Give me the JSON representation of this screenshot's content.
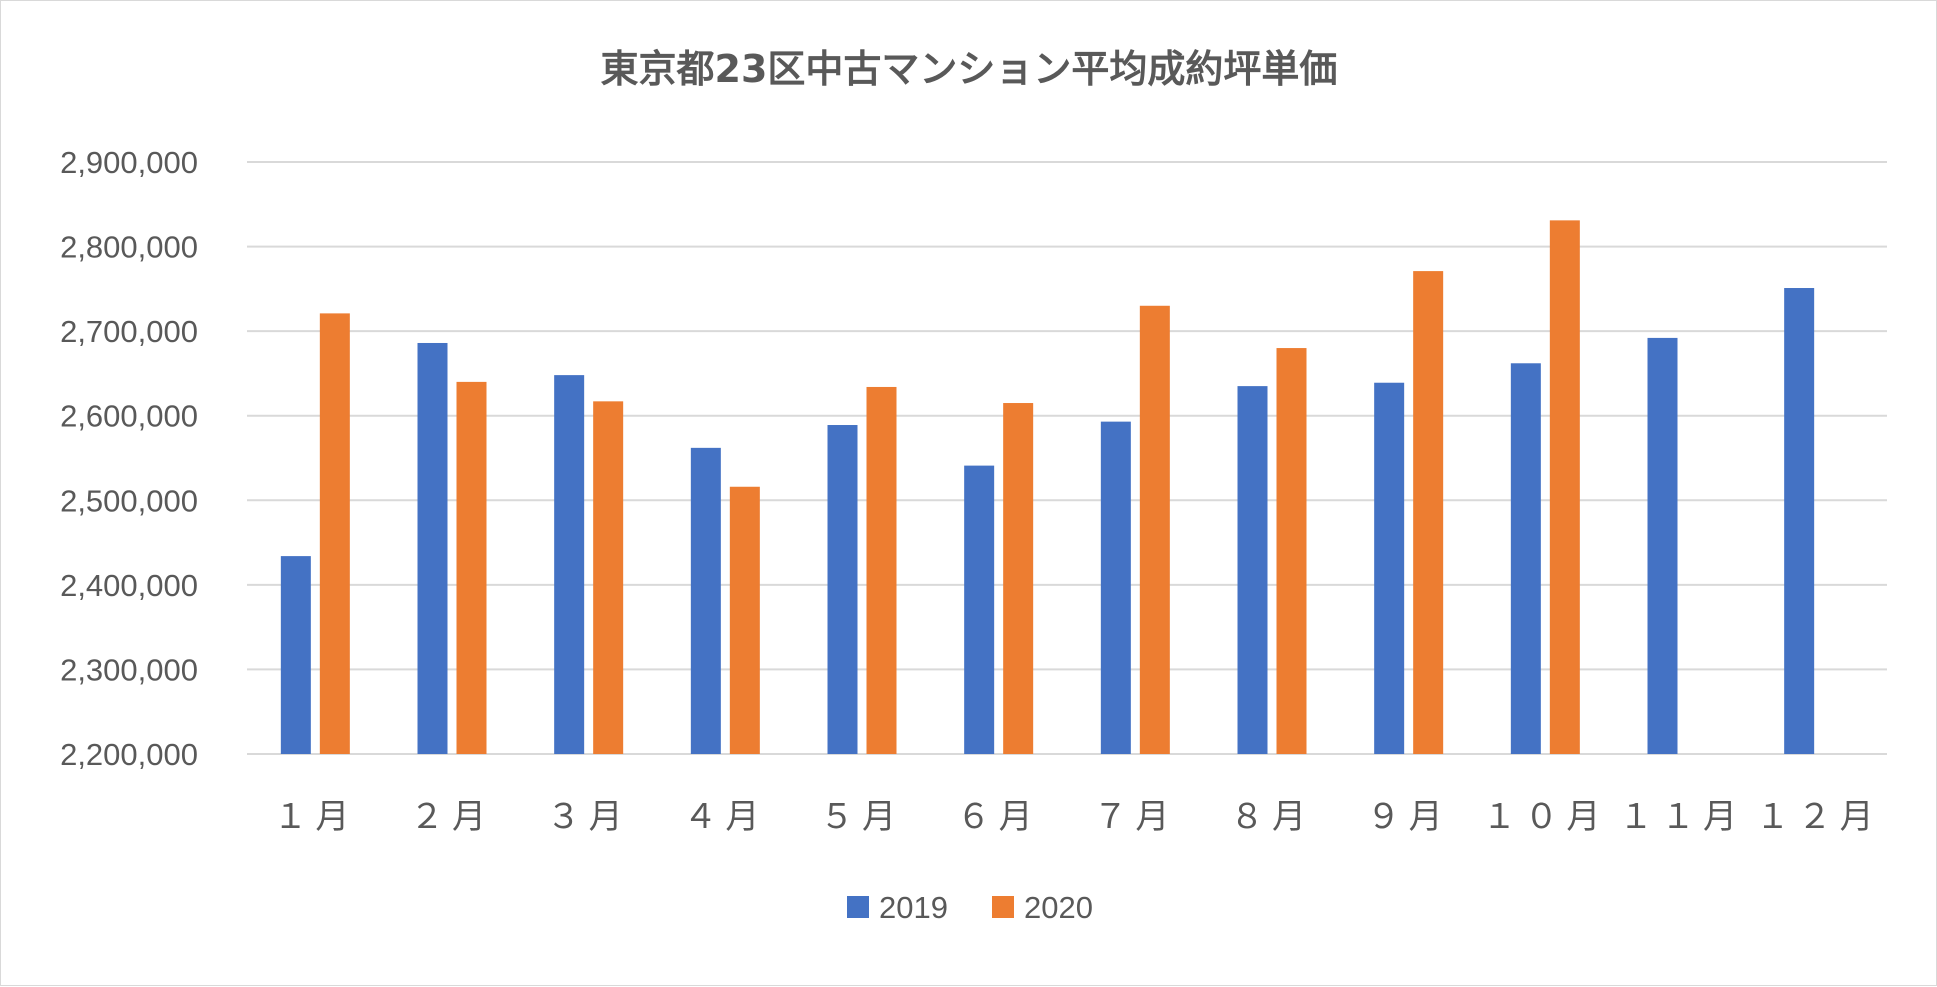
{
  "chart_data": {
    "type": "bar",
    "title": "東京都23区中古マンション平均成約坪単価",
    "categories": [
      "１月",
      "２月",
      "３月",
      "４月",
      "５月",
      "６月",
      "７月",
      "８月",
      "９月",
      "１０月",
      "１１月",
      "１２月"
    ],
    "series": [
      {
        "name": "2019",
        "color": "#4472c4",
        "values": [
          2434000,
          2686000,
          2648000,
          2562000,
          2589000,
          2541000,
          2593000,
          2635000,
          2639000,
          2662000,
          2692000,
          2751000
        ]
      },
      {
        "name": "2020",
        "color": "#ed7d31",
        "values": [
          2721000,
          2640000,
          2617000,
          2516000,
          2634000,
          2615000,
          2730000,
          2680000,
          2771000,
          2831000,
          null,
          null
        ]
      }
    ],
    "ylim": [
      2200000,
      2900000
    ],
    "yticks": [
      "2,200,000",
      "2,300,000",
      "2,400,000",
      "2,500,000",
      "2,600,000",
      "2,700,000",
      "2,800,000",
      "2,900,000"
    ],
    "grid": true,
    "legend_position": "bottom"
  }
}
